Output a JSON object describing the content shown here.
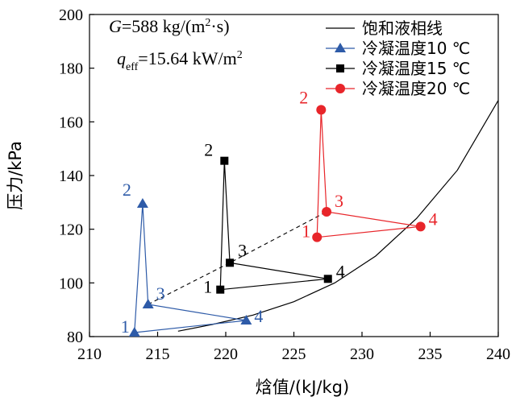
{
  "chart_data": {
    "type": "line",
    "xlabel": "焓值/(kJ/kg)",
    "ylabel": "压力/kPa",
    "xlim": [
      210,
      240
    ],
    "ylim": [
      80,
      200
    ],
    "xticks": [
      210,
      215,
      220,
      225,
      230,
      235,
      240
    ],
    "yticks": [
      80,
      100,
      120,
      140,
      160,
      180,
      200
    ],
    "grid": false,
    "legend_position": "top-right",
    "annotation": {
      "g_symbol": "G",
      "g_value": "=588 kg/(m",
      "g_sup": "2",
      "g_tail": "·s)",
      "q_symbol": "q",
      "q_sub": "eff",
      "q_value": "=15.64 kW/m",
      "q_sup": "2"
    },
    "series": [
      {
        "name": "饱和液相线",
        "style": "line",
        "color": "#000000",
        "x": [
          216.5,
          219,
          222,
          225,
          228,
          231,
          234,
          237,
          240
        ],
        "y": [
          82,
          84.5,
          88,
          93,
          100,
          110,
          124,
          142,
          168
        ]
      },
      {
        "name": "冷凝温度10 ℃",
        "style": "triangle",
        "color": "#2E5BA8",
        "x": [
          213.3,
          213.9,
          214.3,
          221.5,
          213.3
        ],
        "y": [
          81.5,
          129.5,
          92,
          86,
          81.5
        ],
        "labels": [
          "1",
          "2",
          "3",
          "4",
          ""
        ]
      },
      {
        "name": "冷凝温度15 ℃",
        "style": "square",
        "color": "#000000",
        "x": [
          219.6,
          219.9,
          220.3,
          227.5,
          219.6
        ],
        "y": [
          97.5,
          145.5,
          107.5,
          101.5,
          97.5
        ],
        "labels": [
          "1",
          "2",
          "3",
          "4",
          ""
        ]
      },
      {
        "name": "冷凝温度20 ℃",
        "style": "circle",
        "color": "#E8252A",
        "x": [
          226.7,
          227.0,
          227.4,
          234.3,
          226.7
        ],
        "y": [
          117,
          164.5,
          126.5,
          121,
          117
        ],
        "labels": [
          "1",
          "2",
          "3",
          "4",
          ""
        ]
      }
    ],
    "dashed_line": {
      "x": [
        214.3,
        220.3,
        227.4
      ],
      "y": [
        92,
        107.5,
        126.5
      ]
    }
  }
}
